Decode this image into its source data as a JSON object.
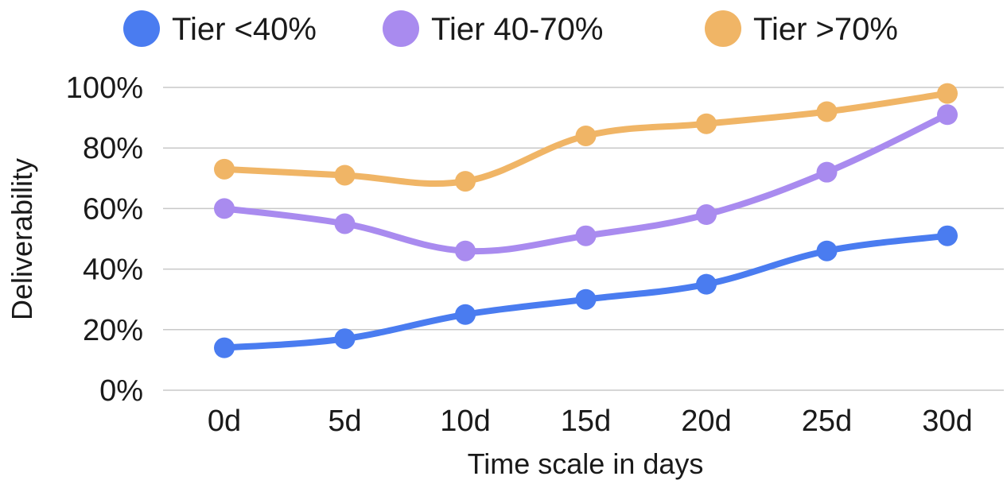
{
  "chart_data": {
    "type": "line",
    "categories": [
      "0d",
      "5d",
      "10d",
      "15d",
      "20d",
      "25d",
      "30d"
    ],
    "series": [
      {
        "name": "Tier <40%",
        "color": "#4A7CF0",
        "values": [
          14,
          17,
          25,
          30,
          35,
          46,
          51
        ]
      },
      {
        "name": "Tier 40-70%",
        "color": "#A98BEF",
        "values": [
          60,
          55,
          46,
          51,
          58,
          72,
          91
        ]
      },
      {
        "name": "Tier >70%",
        "color": "#F0B566",
        "values": [
          73,
          71,
          69,
          84,
          88,
          92,
          98
        ]
      }
    ],
    "xlabel": "Time scale in days",
    "ylabel": "Deliverability",
    "ylim": [
      0,
      100
    ],
    "yticks": [
      0,
      20,
      40,
      60,
      80,
      100
    ],
    "ytick_labels": [
      "0%",
      "20%",
      "40%",
      "60%",
      "80%",
      "100%"
    ],
    "grid": "horizontal",
    "grid_color": "#c8c8c8",
    "legend_position": "top",
    "line_style": "smooth"
  }
}
